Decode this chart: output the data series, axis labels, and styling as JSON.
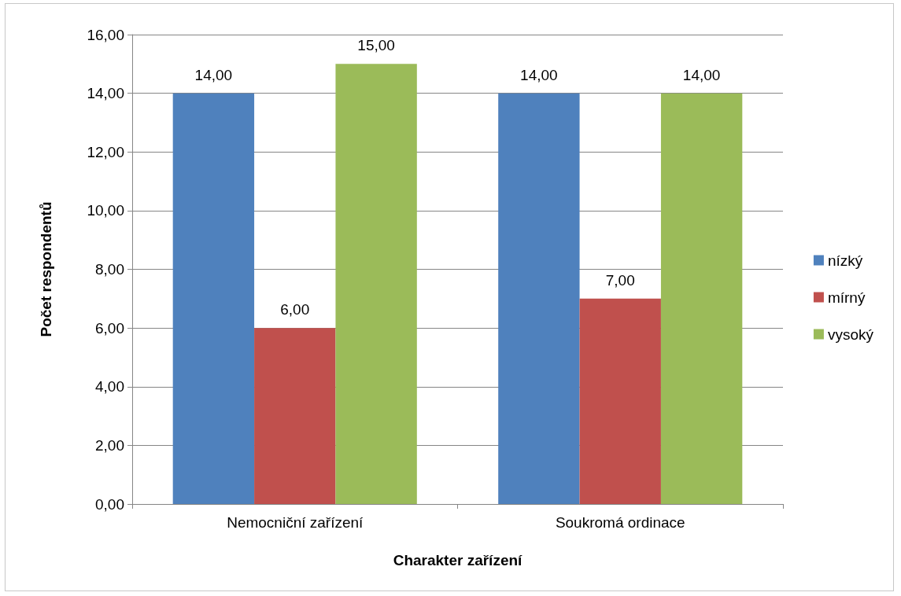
{
  "chart_data": {
    "type": "bar",
    "xlabel": "Charakter zařízení",
    "ylabel": "Počet respondentů",
    "categories": [
      "Nemocniční zařízení",
      "Soukromá ordinace"
    ],
    "series": [
      {
        "name": "nízký",
        "color": "#4f81bd",
        "values": [
          14,
          14
        ],
        "value_labels": [
          "14,00",
          "14,00"
        ]
      },
      {
        "name": "mírný",
        "color": "#c0504d",
        "values": [
          6,
          7
        ],
        "value_labels": [
          "6,00",
          "7,00"
        ]
      },
      {
        "name": "vysoký",
        "color": "#9bbb59",
        "values": [
          15,
          14
        ],
        "value_labels": [
          "15,00",
          "14,00"
        ]
      }
    ],
    "ylim": [
      0,
      16
    ],
    "yticks": [
      {
        "value": 0,
        "label": "0,00"
      },
      {
        "value": 2,
        "label": "2,00"
      },
      {
        "value": 4,
        "label": "4,00"
      },
      {
        "value": 6,
        "label": "6,00"
      },
      {
        "value": 8,
        "label": "8,00"
      },
      {
        "value": 10,
        "label": "10,00"
      },
      {
        "value": 12,
        "label": "12,00"
      },
      {
        "value": 14,
        "label": "14,00"
      },
      {
        "value": 16,
        "label": "16,00"
      }
    ],
    "grid": "y",
    "legend": "right"
  }
}
